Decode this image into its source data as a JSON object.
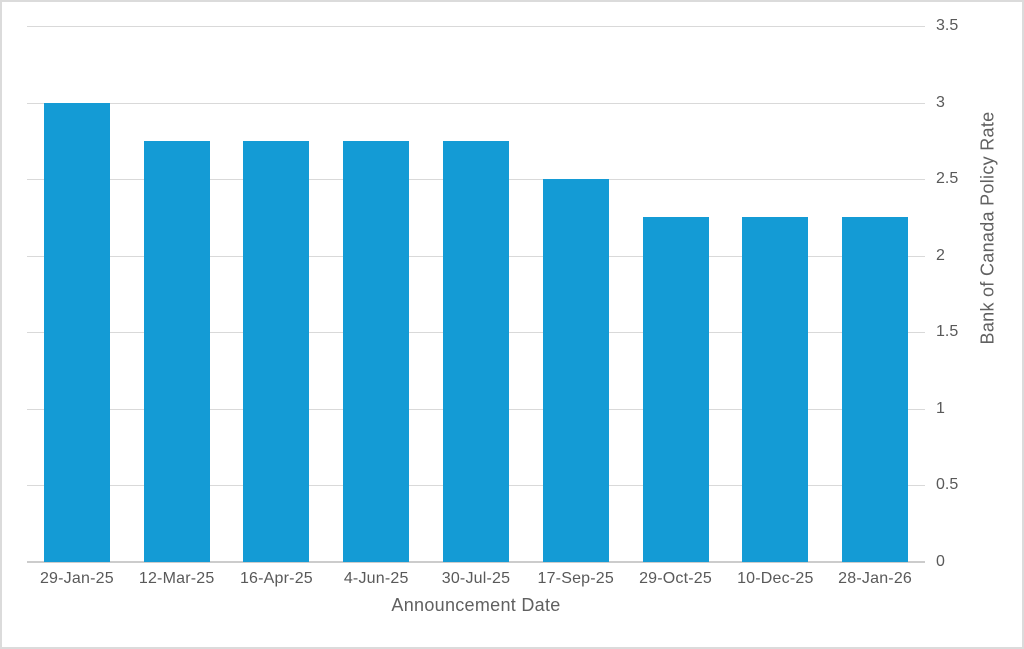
{
  "chart_data": {
    "type": "bar",
    "title": "",
    "categories": [
      "29-Jan-25",
      "12-Mar-25",
      "16-Apr-25",
      "4-Jun-25",
      "30-Jul-25",
      "17-Sep-25",
      "29-Oct-25",
      "10-Dec-25",
      "28-Jan-26"
    ],
    "values": [
      3.0,
      2.75,
      2.75,
      2.75,
      2.75,
      2.5,
      2.25,
      2.25,
      2.25
    ],
    "xlabel": "Announcement Date",
    "ylabel": "Bank of Canada Policy Rate",
    "ylim": [
      0,
      3.5
    ],
    "yticks": [
      0,
      0.5,
      1,
      1.5,
      2,
      2.5,
      3,
      3.5
    ],
    "ytick_labels": [
      "0",
      "0.5",
      "1",
      "1.5",
      "2",
      "2.5",
      "3",
      "3.5"
    ],
    "y_axis_side": "right",
    "grid": true,
    "legend": "none",
    "colors": {
      "bar": "#149BD5",
      "gridline": "#d9d9d9",
      "axis_line": "#cccccc",
      "tick_text": "#595959",
      "title_text": "#606060",
      "border": "#dbdbdb",
      "background": "#ffffff"
    }
  }
}
